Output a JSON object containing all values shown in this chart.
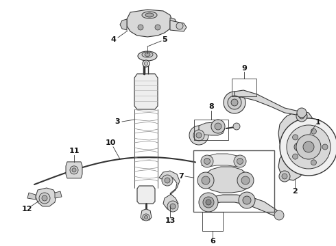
{
  "bg_color": "#ffffff",
  "fig_width": 4.9,
  "fig_height": 3.6,
  "dpi": 100,
  "line_color": "#333333",
  "label_color": "#111111",
  "label_fontsize": 7.5,
  "gray_fill": "#d8d8d8",
  "gray_dark": "#aaaaaa",
  "gray_mid": "#cccccc",
  "gray_light": "#eeeeee"
}
